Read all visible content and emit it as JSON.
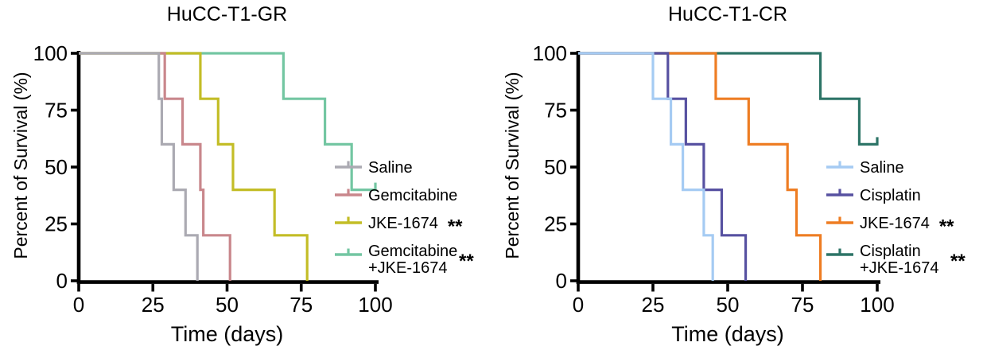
{
  "background_color": "#ffffff",
  "axis_color": "#000000",
  "significance_marker": "**",
  "chart_data": [
    {
      "type": "line",
      "subtype": "kaplan_meier_step_survival",
      "title": "HuCC-T1-GR",
      "xlabel": "Time (days)",
      "ylabel": "Percent of Survival (%)",
      "xlim": [
        0,
        100
      ],
      "ylim": [
        0,
        100
      ],
      "xticks": [
        0,
        25,
        50,
        75,
        100
      ],
      "yticks": [
        0,
        25,
        50,
        75,
        100
      ],
      "grid": false,
      "legend_position": "inside-right",
      "legend_marker": "line-with-censor-tick",
      "series": [
        {
          "name": "Saline",
          "color": "#abaab2",
          "significance": "",
          "points": [
            [
              0,
              100
            ],
            [
              27,
              80
            ],
            [
              28,
              60
            ],
            [
              32,
              40
            ],
            [
              36,
              20
            ],
            [
              40,
              0
            ]
          ],
          "end_censored_at": null
        },
        {
          "name": "Gemcitabine",
          "color": "#c9878c",
          "significance": "",
          "points": [
            [
              0,
              100
            ],
            [
              29,
              80
            ],
            [
              35,
              60
            ],
            [
              41,
              40
            ],
            [
              42,
              20
            ],
            [
              51,
              0
            ]
          ],
          "end_censored_at": null
        },
        {
          "name": "JKE-1674",
          "color": "#c3bd27",
          "significance": "**",
          "points": [
            [
              0,
              100
            ],
            [
              41,
              80
            ],
            [
              47,
              60
            ],
            [
              52,
              40
            ],
            [
              66,
              20
            ],
            [
              77,
              0
            ]
          ],
          "end_censored_at": null
        },
        {
          "name": "Gemcitabine\n+JKE-1674",
          "color": "#73c6a2",
          "significance": "**",
          "points": [
            [
              0,
              100
            ],
            [
              69,
              80
            ],
            [
              83,
              60
            ],
            [
              92,
              40
            ]
          ],
          "end_censored_at": 100
        }
      ]
    },
    {
      "type": "line",
      "subtype": "kaplan_meier_step_survival",
      "title": "HuCC-T1-CR",
      "xlabel": "Time (days)",
      "ylabel": "Percent of Survival (%)",
      "xlim": [
        0,
        100
      ],
      "ylim": [
        0,
        100
      ],
      "xticks": [
        0,
        25,
        50,
        75,
        100
      ],
      "yticks": [
        0,
        25,
        50,
        75,
        100
      ],
      "grid": false,
      "legend_position": "inside-right",
      "legend_marker": "line-with-censor-tick",
      "series": [
        {
          "name": "Saline",
          "color": "#a5cbf3",
          "significance": "",
          "points": [
            [
              0,
              100
            ],
            [
              25,
              80
            ],
            [
              31,
              60
            ],
            [
              35,
              40
            ],
            [
              42,
              20
            ],
            [
              45,
              0
            ]
          ],
          "end_censored_at": null
        },
        {
          "name": "Cisplatin",
          "color": "#5751a1",
          "significance": "",
          "points": [
            [
              0,
              100
            ],
            [
              30,
              80
            ],
            [
              36,
              60
            ],
            [
              42,
              40
            ],
            [
              48,
              20
            ],
            [
              56,
              0
            ]
          ],
          "end_censored_at": null
        },
        {
          "name": "JKE-1674",
          "color": "#ee7d23",
          "significance": "**",
          "points": [
            [
              0,
              100
            ],
            [
              46,
              80
            ],
            [
              57,
              60
            ],
            [
              70,
              40
            ],
            [
              73,
              20
            ],
            [
              81,
              0
            ]
          ],
          "end_censored_at": null
        },
        {
          "name": "Cisplatin\n+JKE-1674",
          "color": "#2d7467",
          "significance": "**",
          "points": [
            [
              0,
              100
            ],
            [
              81,
              80
            ],
            [
              94,
              60
            ]
          ],
          "end_censored_at": 100
        }
      ]
    }
  ]
}
